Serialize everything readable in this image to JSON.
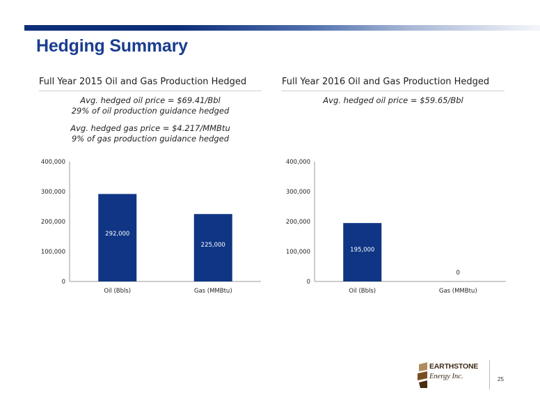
{
  "slide": {
    "title": "Hedging Summary",
    "page_number": "25"
  },
  "logo": {
    "name": "EARTHSTONE",
    "subtitle": "Energy Inc."
  },
  "colors": {
    "bar": "#0f3584",
    "brand": "#1a3d8f",
    "logo": "#7a4e21"
  },
  "left_panel": {
    "title": "Full Year 2015 Oil and Gas Production Hedged",
    "notes": [
      [
        "Avg. hedged oil price = $69.41/Bbl",
        "29% of oil production guidance hedged"
      ],
      [
        "Avg. hedged gas price = $4.217/MMBtu",
        "9% of gas production guidance hedged"
      ]
    ]
  },
  "right_panel": {
    "title": "Full Year 2016 Oil and Gas Production Hedged",
    "notes": [
      [
        "Avg. hedged oil price = $59.65/Bbl"
      ]
    ]
  },
  "chart_data": [
    {
      "type": "bar",
      "title": "Full Year 2015 Oil and Gas Production Hedged",
      "categories": [
        "Oil (Bbls)",
        "Gas (MMBtu)"
      ],
      "values": [
        292000,
        225000
      ],
      "data_labels": [
        "292,000",
        "225,000"
      ],
      "yticks": [
        "0",
        "100,000",
        "200,000",
        "300,000",
        "400,000"
      ],
      "ylim": [
        0,
        400000
      ],
      "grid": false,
      "legend": "none"
    },
    {
      "type": "bar",
      "title": "Full Year 2016 Oil and Gas Production Hedged",
      "categories": [
        "Oil (Bbls)",
        "Gas (MMBtu)"
      ],
      "values": [
        195000,
        0
      ],
      "data_labels": [
        "195,000",
        "0"
      ],
      "yticks": [
        "0",
        "100,000",
        "200,000",
        "300,000",
        "400,000"
      ],
      "ylim": [
        0,
        400000
      ],
      "grid": false,
      "legend": "none"
    }
  ]
}
